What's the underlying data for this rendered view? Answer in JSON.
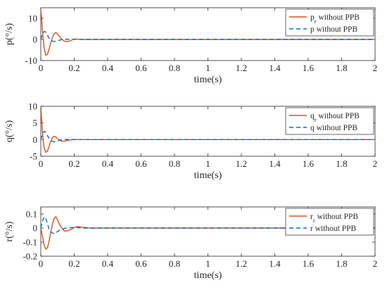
{
  "chart_data": [
    {
      "type": "line",
      "xlabel": "time(s)",
      "ylabel": "p(°/s)",
      "xlim": [
        0,
        2
      ],
      "ylim": [
        -10,
        15
      ],
      "xticks": [
        "0",
        "0.2",
        "0.4",
        "0.6",
        "0.8",
        "1",
        "1.2",
        "1.4",
        "1.6",
        "1.8",
        "2"
      ],
      "yticks": [
        "-10",
        "0",
        "10"
      ],
      "legend_position": "top-right",
      "series": [
        {
          "name_main": "p",
          "name_sub": "r",
          "name_rest": " without PPB",
          "color": "#D95319",
          "style": "solid",
          "x": [
            0,
            0.005,
            0.01,
            0.02,
            0.03,
            0.04,
            0.05,
            0.06,
            0.07,
            0.08,
            0.09,
            0.1,
            0.12,
            0.14,
            0.16,
            0.18,
            0.2,
            0.22,
            0.25,
            0.3,
            2
          ],
          "y": [
            14,
            10,
            4,
            -4,
            -7.5,
            -7,
            -4.5,
            -1.5,
            1,
            2.8,
            3.2,
            2.5,
            0.5,
            -0.8,
            -1.1,
            -0.5,
            0.2,
            0.1,
            0,
            0,
            0
          ]
        },
        {
          "name_main": "p",
          "name_sub": "",
          "name_rest": " without PPB",
          "color": "#0072BD",
          "style": "dashed",
          "x": [
            0,
            0.01,
            0.02,
            0.03,
            0.04,
            0.05,
            0.06,
            0.08,
            0.1,
            0.12,
            0.15,
            0.2,
            0.25,
            2
          ],
          "y": [
            0,
            2.5,
            3.8,
            3.5,
            2,
            0.5,
            -0.5,
            -1,
            -0.6,
            -0.2,
            0.1,
            0.05,
            0,
            0
          ]
        }
      ]
    },
    {
      "type": "line",
      "xlabel": "time(s)",
      "ylabel": "q(°/s)",
      "xlim": [
        0,
        2
      ],
      "ylim": [
        -5,
        10
      ],
      "xticks": [
        "0",
        "0.2",
        "0.4",
        "0.6",
        "0.8",
        "1",
        "1.2",
        "1.4",
        "1.6",
        "1.8",
        "2"
      ],
      "yticks": [
        "-5",
        "0",
        "5",
        "10"
      ],
      "legend_position": "top-right",
      "series": [
        {
          "name_main": "q",
          "name_sub": "r",
          "name_rest": " without PPB",
          "color": "#D95319",
          "style": "solid",
          "x": [
            0,
            0.005,
            0.01,
            0.02,
            0.03,
            0.04,
            0.05,
            0.06,
            0.07,
            0.08,
            0.09,
            0.1,
            0.12,
            0.14,
            0.16,
            0.2,
            0.25,
            2
          ],
          "y": [
            10,
            6,
            2,
            -2.5,
            -3.8,
            -3.5,
            -2,
            -0.5,
            0.6,
            1,
            0.8,
            0.3,
            -0.4,
            -0.5,
            -0.2,
            0.05,
            0,
            0
          ]
        },
        {
          "name_main": "q",
          "name_sub": "",
          "name_rest": " without PPB",
          "color": "#0072BD",
          "style": "dashed",
          "x": [
            0,
            0.01,
            0.02,
            0.03,
            0.04,
            0.05,
            0.06,
            0.08,
            0.1,
            0.12,
            0.15,
            0.2,
            0.25,
            2
          ],
          "y": [
            0,
            1.8,
            2.5,
            2.2,
            1.2,
            0.3,
            -0.3,
            -0.7,
            -0.4,
            -0.1,
            0.05,
            0,
            0,
            0
          ]
        }
      ]
    },
    {
      "type": "line",
      "xlabel": "time(s)",
      "ylabel": "r(°/s)",
      "xlim": [
        0,
        2
      ],
      "ylim": [
        -0.2,
        0.15
      ],
      "xticks": [
        "0",
        "0.2",
        "0.4",
        "0.6",
        "0.8",
        "1",
        "1.2",
        "1.4",
        "1.6",
        "1.8",
        "2"
      ],
      "yticks": [
        "-0.2",
        "-0.1",
        "0",
        "0.1"
      ],
      "legend_position": "top-right",
      "series": [
        {
          "name_main": "r",
          "name_sub": "r",
          "name_rest": " without PPB",
          "color": "#D95319",
          "style": "solid",
          "x": [
            0,
            0.01,
            0.02,
            0.03,
            0.04,
            0.05,
            0.06,
            0.07,
            0.08,
            0.09,
            0.1,
            0.11,
            0.12,
            0.14,
            0.16,
            0.18,
            0.2,
            0.22,
            0.25,
            0.3,
            0.4,
            2
          ],
          "y": [
            0,
            -0.06,
            -0.12,
            -0.15,
            -0.14,
            -0.09,
            -0.03,
            0.03,
            0.07,
            0.08,
            0.06,
            0.03,
            0.01,
            -0.02,
            -0.02,
            -0.01,
            0.005,
            0.01,
            0.005,
            0,
            0,
            0
          ]
        },
        {
          "name_main": "r",
          "name_sub": "",
          "name_rest": " without PPB",
          "color": "#0072BD",
          "style": "dashed",
          "x": [
            0,
            0.01,
            0.02,
            0.03,
            0.04,
            0.05,
            0.06,
            0.08,
            0.1,
            0.12,
            0.15,
            0.2,
            0.25,
            2
          ],
          "y": [
            0,
            0.05,
            0.08,
            0.07,
            0.03,
            -0.01,
            -0.03,
            -0.04,
            -0.025,
            -0.01,
            0,
            0.005,
            0,
            0
          ]
        }
      ]
    }
  ]
}
